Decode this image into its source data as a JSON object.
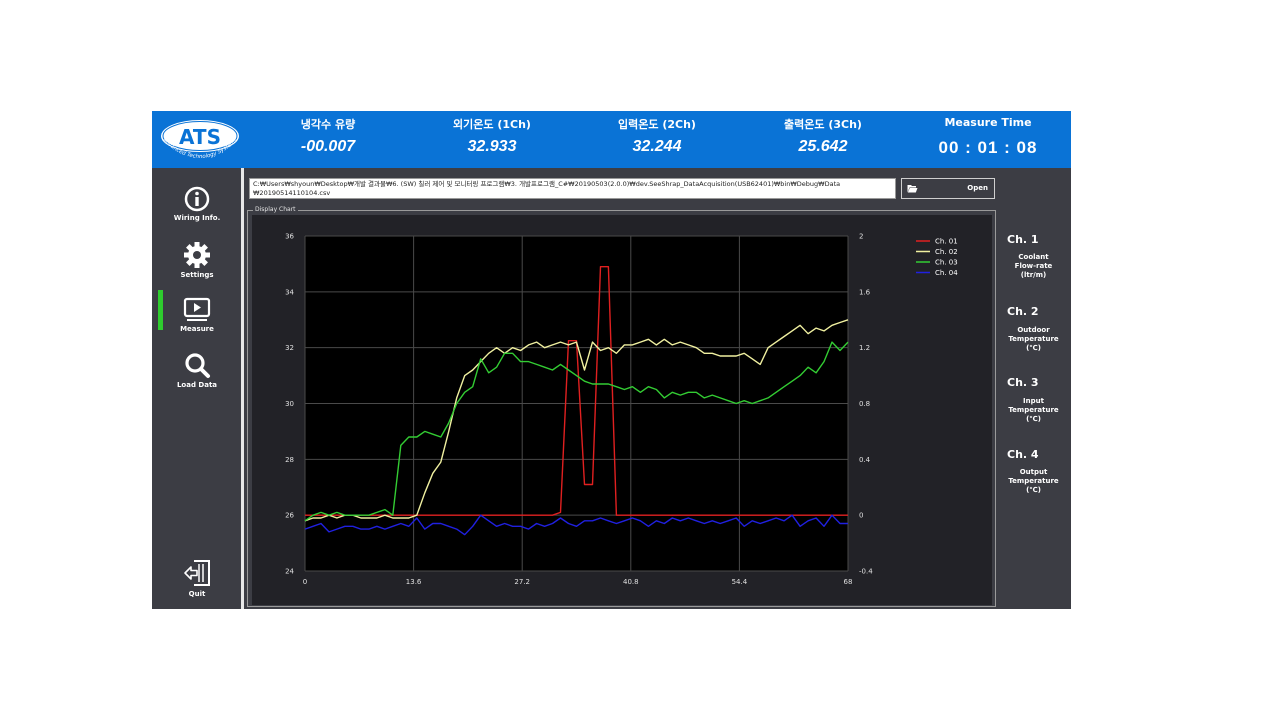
{
  "logo": {
    "text": "ATS",
    "tagline": "Advanced Technology Systems"
  },
  "header": {
    "metrics": [
      {
        "label": "냉각수 유량",
        "value": "-00.007"
      },
      {
        "label": "외기온도 (1Ch)",
        "value": "32.933"
      },
      {
        "label": "입력온도 (2Ch)",
        "value": "32.244"
      },
      {
        "label": "출력온도 (3Ch)",
        "value": "25.642"
      },
      {
        "label": "Measure Time",
        "value": "00 : 01 : 08"
      }
    ]
  },
  "sidebar": {
    "items": [
      {
        "label": "Wiring Info.",
        "icon": "info-icon"
      },
      {
        "label": "Settings",
        "icon": "gear-icon"
      },
      {
        "label": "Measure",
        "icon": "play-icon"
      },
      {
        "label": "Load Data",
        "icon": "search-icon",
        "active": true
      },
      {
        "label": "Quit",
        "icon": "exit-icon"
      }
    ],
    "active_color": "#2ecc2e"
  },
  "file": {
    "path_line1": "C:₩Users₩shyoun₩Desktop₩개발 결과물₩6. (SW) 칠러 제어 및 모니터링 프로그램₩3. 개발프로그램_C#₩20190503(2.0.0)₩dev.SeeShrap_DataAcquisition(USB62401)₩bin₩Debug₩Data",
    "path_line2": "₩20190514110104.csv",
    "open_label": "Open"
  },
  "chart_group_title": "Display Chart",
  "right_panel": {
    "channels": [
      {
        "title": "Ch. 1",
        "desc": [
          "Coolant",
          "Flow-rate",
          "(ltr/m)"
        ]
      },
      {
        "title": "Ch. 2",
        "desc": [
          "Outdoor",
          "Temperature",
          "(℃)"
        ]
      },
      {
        "title": "Ch. 3",
        "desc": [
          "Input",
          "Temperature",
          "(℃)"
        ]
      },
      {
        "title": "Ch. 4",
        "desc": [
          "Output",
          "Temperature",
          "(℃)"
        ]
      }
    ]
  },
  "chart_data": {
    "type": "line",
    "title": "",
    "xlabel": "",
    "ylabel": "",
    "xlim": [
      0,
      68
    ],
    "ylim": [
      24,
      36
    ],
    "y2lim": [
      -0.4,
      2
    ],
    "x_ticks": [
      "0",
      "13.6",
      "27.2",
      "40.8",
      "54.4",
      "68"
    ],
    "y_ticks": [
      "24",
      "26",
      "28",
      "30",
      "32",
      "34",
      "36"
    ],
    "y2_ticks": [
      "-0.4",
      "0",
      "0.4",
      "0.8",
      "1.2",
      "1.6",
      "2"
    ],
    "grid": true,
    "legend_position": "top-right",
    "x": [
      0,
      1,
      2,
      3,
      4,
      5,
      6,
      7,
      8,
      9,
      10,
      11,
      12,
      13,
      14,
      15,
      16,
      17,
      18,
      19,
      20,
      21,
      22,
      23,
      24,
      25,
      26,
      27,
      28,
      29,
      30,
      31,
      32,
      33,
      34,
      35,
      36,
      37,
      38,
      39,
      40,
      41,
      42,
      43,
      44,
      45,
      46,
      47,
      48,
      49,
      50,
      51,
      52,
      53,
      54,
      55,
      56,
      57,
      58,
      59,
      60,
      61,
      62,
      63,
      64,
      65,
      66,
      67,
      68
    ],
    "series": [
      {
        "name": "Ch. 01",
        "color": "#e02020",
        "axis": "right",
        "values": [
          0,
          0,
          0,
          0,
          0,
          0,
          0,
          0,
          0,
          0,
          0,
          0,
          0,
          0,
          0,
          0,
          0,
          0,
          0,
          0,
          0,
          0,
          0,
          0,
          0,
          0,
          0,
          0,
          0,
          0,
          0,
          0,
          0.02,
          1.25,
          1.25,
          0.22,
          0.22,
          1.78,
          1.78,
          0,
          0,
          0,
          0,
          0,
          0,
          0,
          0,
          0,
          0,
          0,
          0,
          0,
          0,
          0,
          0,
          0,
          0,
          0,
          0,
          0,
          0,
          0,
          0,
          0,
          0,
          0,
          0,
          0,
          0
        ]
      },
      {
        "name": "Ch. 02",
        "color": "#f0f0a0",
        "axis": "left",
        "values": [
          25.8,
          25.9,
          25.9,
          26.0,
          25.9,
          26.0,
          26.0,
          25.9,
          25.9,
          25.9,
          26.0,
          25.9,
          25.9,
          25.9,
          26.0,
          26.8,
          27.5,
          27.9,
          29.0,
          30.2,
          31.0,
          31.2,
          31.5,
          31.8,
          32.0,
          31.8,
          32.0,
          31.9,
          32.1,
          32.2,
          32.0,
          32.1,
          32.2,
          32.1,
          32.2,
          31.2,
          32.2,
          31.9,
          32.0,
          31.8,
          32.1,
          32.1,
          32.2,
          32.3,
          32.1,
          32.3,
          32.1,
          32.2,
          32.1,
          32.0,
          31.8,
          31.8,
          31.7,
          31.7,
          31.7,
          31.8,
          31.6,
          31.4,
          32.0,
          32.2,
          32.4,
          32.6,
          32.8,
          32.5,
          32.7,
          32.6,
          32.8,
          32.9,
          33.0
        ]
      },
      {
        "name": "Ch. 03",
        "color": "#33cc33",
        "axis": "left",
        "values": [
          25.8,
          26.0,
          26.1,
          26.0,
          26.1,
          26.0,
          26.0,
          26.0,
          26.0,
          26.1,
          26.2,
          26.0,
          28.5,
          28.8,
          28.8,
          29.0,
          28.9,
          28.8,
          29.3,
          30.0,
          30.4,
          30.6,
          31.6,
          31.1,
          31.3,
          31.8,
          31.8,
          31.5,
          31.5,
          31.4,
          31.3,
          31.2,
          31.4,
          31.2,
          31.0,
          30.8,
          30.7,
          30.7,
          30.7,
          30.6,
          30.5,
          30.6,
          30.4,
          30.6,
          30.5,
          30.2,
          30.4,
          30.3,
          30.4,
          30.4,
          30.2,
          30.3,
          30.2,
          30.1,
          30.0,
          30.1,
          30.0,
          30.1,
          30.2,
          30.4,
          30.6,
          30.8,
          31.0,
          31.3,
          31.1,
          31.5,
          32.2,
          31.9,
          32.2
        ]
      },
      {
        "name": "Ch. 04",
        "color": "#2020e0",
        "axis": "left",
        "values": [
          25.5,
          25.6,
          25.7,
          25.4,
          25.5,
          25.6,
          25.6,
          25.5,
          25.5,
          25.6,
          25.5,
          25.6,
          25.7,
          25.6,
          25.9,
          25.5,
          25.7,
          25.7,
          25.6,
          25.5,
          25.3,
          25.6,
          26.0,
          25.8,
          25.6,
          25.7,
          25.6,
          25.6,
          25.5,
          25.7,
          25.6,
          25.7,
          25.9,
          25.7,
          25.6,
          25.8,
          25.8,
          25.9,
          25.8,
          25.7,
          25.8,
          25.9,
          25.8,
          25.6,
          25.8,
          25.7,
          25.9,
          25.8,
          25.9,
          25.8,
          25.7,
          25.8,
          25.7,
          25.8,
          25.9,
          25.6,
          25.8,
          25.7,
          25.8,
          25.9,
          25.8,
          26.0,
          25.6,
          25.8,
          25.9,
          25.6,
          26.0,
          25.7,
          25.7
        ]
      }
    ]
  }
}
